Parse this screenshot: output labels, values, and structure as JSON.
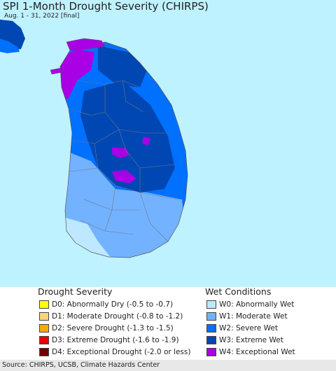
{
  "header": {
    "title": "SPI 1-Month Drought Severity (CHIRPS)",
    "subtitle": "Aug. 1 - 31, 2022 [final]"
  },
  "colors": {
    "sea": "#bff2ff",
    "land_outside": "#ffffff"
  },
  "legend": {
    "drought": {
      "heading": "Drought Severity",
      "items": [
        {
          "label": "D0: Abnormally Dry (-0.5 to -0.7)",
          "color": "#ffff00"
        },
        {
          "label": "D1: Moderate Drought (-0.8 to -1.2)",
          "color": "#fcd37f"
        },
        {
          "label": "D2: Severe Drought (-1.3 to -1.5)",
          "color": "#ffaa00"
        },
        {
          "label": "D3: Extreme Drought (-1.6 to -1.9)",
          "color": "#e60000"
        },
        {
          "label": "D4: Exceptional Drought (-2.0 or less)",
          "color": "#730000"
        }
      ]
    },
    "wet": {
      "heading": "Wet Conditions",
      "items": [
        {
          "label": "W0: Abnormally Wet",
          "color": "#bee8ff"
        },
        {
          "label": "W1: Moderate Wet",
          "color": "#73b2ff"
        },
        {
          "label": "W2: Severe Wet",
          "color": "#0070ff"
        },
        {
          "label": "W3: Extreme Wet",
          "color": "#0047b3"
        },
        {
          "label": "W4: Exceptional Wet",
          "color": "#a900e6"
        }
      ]
    }
  },
  "footer": {
    "source": "Source: CHIRPS, UCSB, Climate Hazards Center"
  }
}
